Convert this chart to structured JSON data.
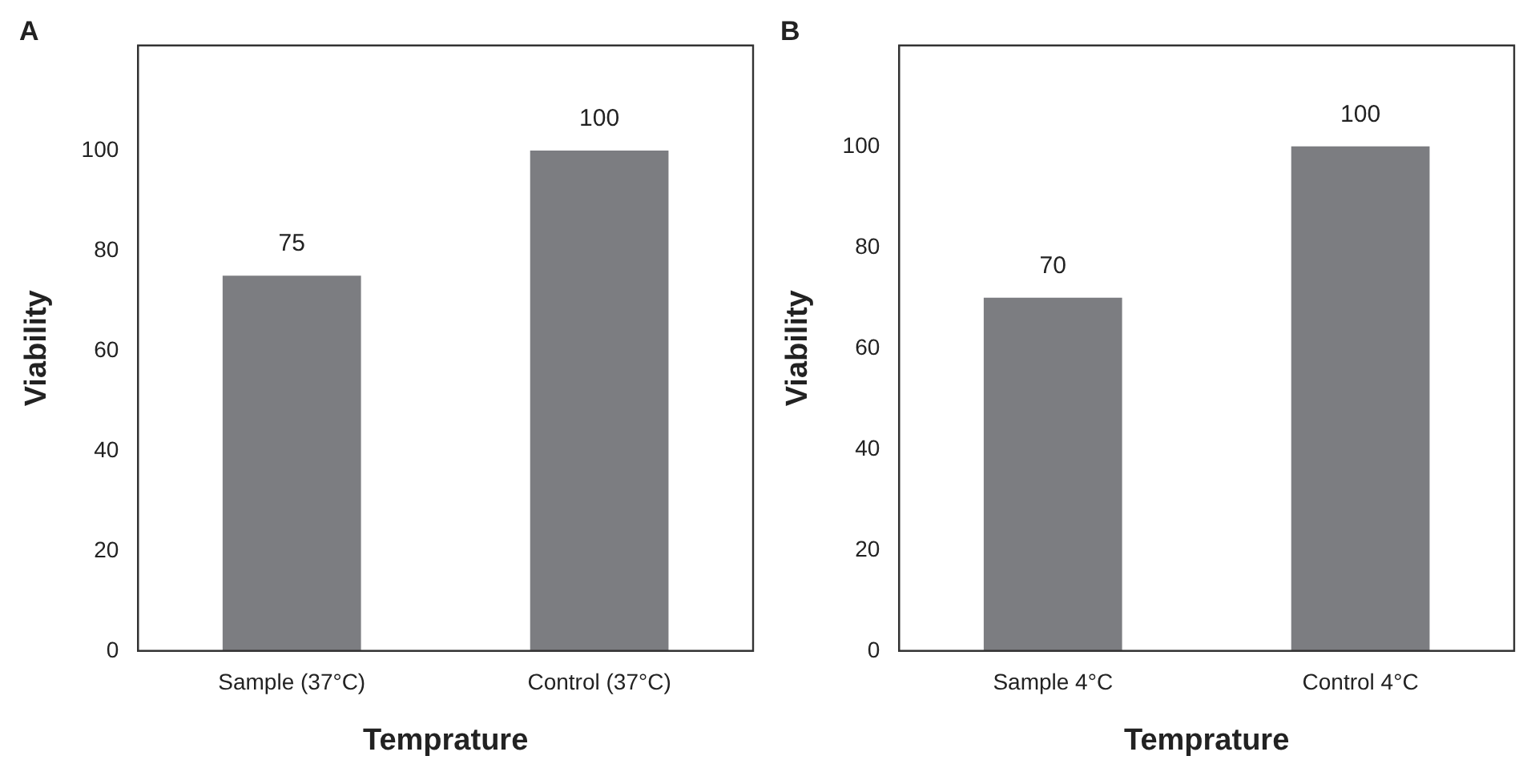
{
  "chart_data": [
    {
      "type": "bar",
      "title": "A",
      "categories": [
        "Sample (37°C)",
        "Control (37°C)"
      ],
      "values": [
        75,
        100
      ],
      "color": "#7c7d81",
      "xlabel": "Temprature",
      "ylabel": "Viability",
      "ylim": [
        0,
        121
      ],
      "yticks": [
        0,
        20,
        40,
        60,
        80,
        100
      ],
      "data_labels": true,
      "grid": false,
      "legend": false
    },
    {
      "type": "bar",
      "title": "B",
      "categories": [
        "Sample 4°C",
        "Control 4°C"
      ],
      "values": [
        70,
        100
      ],
      "color": "#7c7d81",
      "xlabel": "Temprature",
      "ylabel": "Viability",
      "ylim": [
        0,
        120
      ],
      "yticks": [
        0,
        20,
        40,
        60,
        80,
        100
      ],
      "data_labels": true,
      "grid": false,
      "legend": false
    }
  ]
}
